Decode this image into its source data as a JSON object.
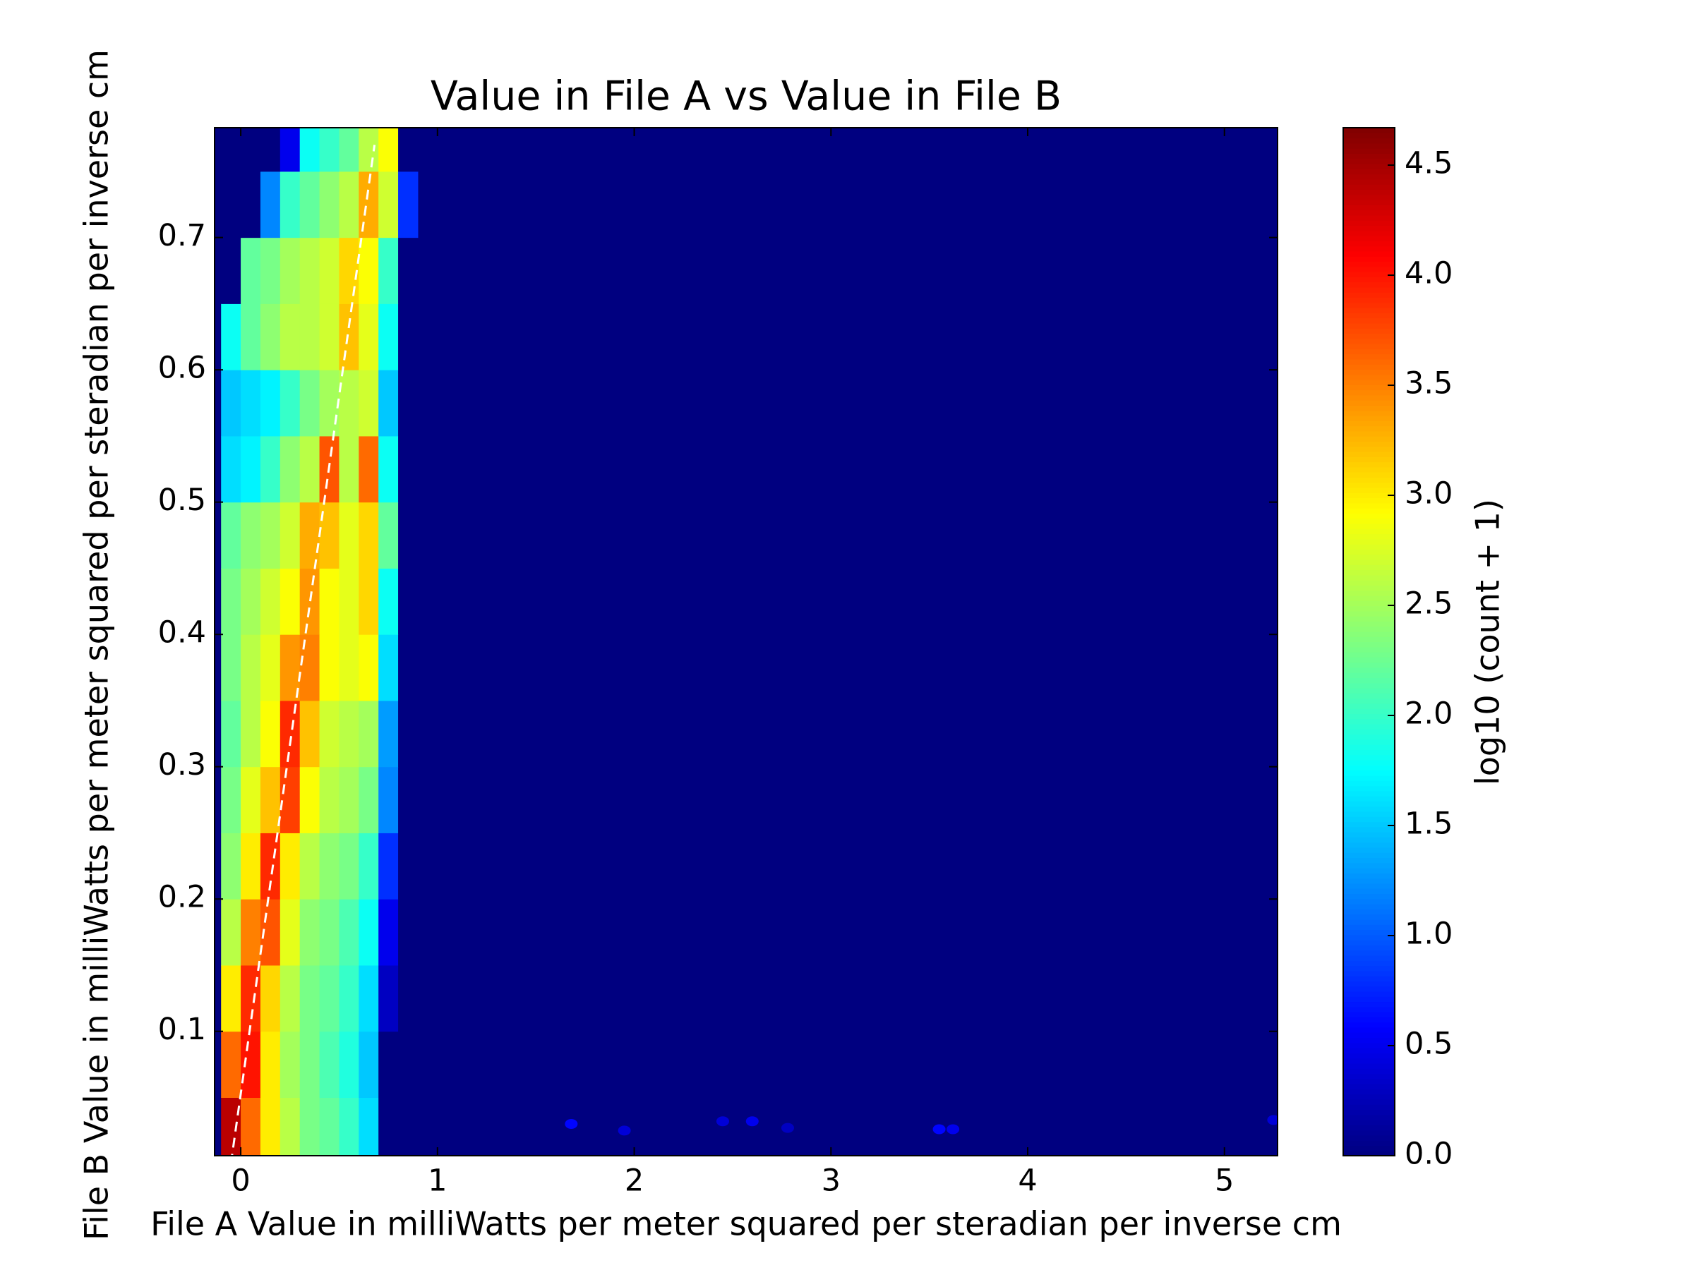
{
  "chart_data": {
    "type": "hexbin",
    "title": "Value in File A vs Value in File B",
    "x_label": "File A Value in milliWatts per meter squared per steradian per inverse cm",
    "y_label": "File B Value in milliWatts per meter squared per steradian per inverse cm",
    "colorbar_label": "log10 (count + 1)",
    "colormap": "jet",
    "xlim": [
      -0.133,
      5.27
    ],
    "ylim": [
      0.006,
      0.783
    ],
    "clim": [
      0,
      4.67
    ],
    "xticks": [
      0,
      1,
      2,
      3,
      4,
      5
    ],
    "yticks": [
      0.1,
      0.2,
      0.3,
      0.4,
      0.5,
      0.6,
      0.7
    ],
    "cticks": [
      {
        "value": 0,
        "label": "0.0"
      },
      0.5,
      {
        "value": 1,
        "label": "1.0"
      },
      1.5,
      {
        "value": 2,
        "label": "2.0"
      },
      2.5,
      {
        "value": 3,
        "label": "3.0"
      },
      3.5,
      {
        "value": 4,
        "label": "4.0"
      },
      4.5
    ],
    "xbins": [
      -0.1,
      0,
      0.1,
      0.2,
      0.3,
      0.4,
      0.5,
      0.6,
      0.7,
      0.8,
      0.9
    ],
    "ybins": [
      0,
      0.05,
      0.1,
      0.15,
      0.2,
      0.25,
      0.3,
      0.35,
      0.4,
      0.45,
      0.5,
      0.55,
      0.6,
      0.65,
      0.7,
      0.75,
      0.8
    ],
    "values": [
      [
        4.4,
        3.6,
        3.0,
        2.6,
        2.3,
        2.2,
        2.0,
        1.6,
        0,
        0
      ],
      [
        3.6,
        4.0,
        3.0,
        2.5,
        2.3,
        2.1,
        1.9,
        1.5,
        0,
        0
      ],
      [
        3.0,
        3.9,
        3.1,
        2.6,
        2.3,
        2.2,
        2.0,
        1.6,
        0.3,
        0
      ],
      [
        2.6,
        3.5,
        3.7,
        2.8,
        2.4,
        2.3,
        2.1,
        1.8,
        0.5,
        0
      ],
      [
        2.4,
        3.0,
        3.9,
        3.0,
        2.6,
        2.4,
        2.3,
        2.0,
        0.8,
        0
      ],
      [
        2.3,
        2.8,
        3.2,
        3.8,
        2.9,
        2.6,
        2.5,
        2.3,
        1.2,
        0
      ],
      [
        2.2,
        2.6,
        2.9,
        3.9,
        3.2,
        2.7,
        2.6,
        2.5,
        1.3,
        0
      ],
      [
        2.3,
        2.6,
        2.8,
        3.4,
        3.5,
        2.9,
        2.8,
        2.9,
        1.6,
        0
      ],
      [
        2.3,
        2.5,
        2.7,
        2.9,
        3.4,
        2.9,
        2.8,
        3.1,
        1.8,
        0
      ],
      [
        2.2,
        2.4,
        2.5,
        2.7,
        3.3,
        3.2,
        2.8,
        3.1,
        2.2,
        0
      ],
      [
        1.6,
        1.7,
        2.0,
        2.4,
        2.6,
        3.7,
        2.6,
        3.6,
        1.8,
        0
      ],
      [
        1.5,
        1.6,
        1.7,
        2.0,
        2.3,
        2.5,
        2.6,
        2.7,
        1.5,
        0
      ],
      [
        1.8,
        2.2,
        2.4,
        2.6,
        2.6,
        2.7,
        3.2,
        2.8,
        1.8,
        0
      ],
      [
        0,
        2.2,
        2.3,
        2.5,
        2.6,
        2.7,
        3.1,
        2.9,
        2.0,
        0
      ],
      [
        0,
        0,
        1.2,
        2.0,
        2.2,
        2.4,
        2.6,
        3.3,
        2.7,
        0.8
      ],
      [
        0,
        0,
        0,
        0.5,
        1.8,
        2.0,
        2.2,
        2.6,
        2.9,
        0
      ]
    ],
    "points": {
      "x": [
        1.68,
        1.95,
        2.45,
        2.6,
        2.78,
        3.55,
        3.62,
        5.25
      ],
      "y": [
        0.03,
        0.025,
        0.032,
        0.032,
        0.027,
        0.026,
        0.026,
        0.033
      ],
      "values": [
        0.6,
        0.4,
        0.4,
        0.5,
        0.3,
        0.6,
        0.5,
        0.4
      ]
    },
    "line": {
      "x": [
        -0.05,
        0.68
      ],
      "y": [
        0,
        0.77
      ],
      "color": "#ffffff"
    }
  }
}
